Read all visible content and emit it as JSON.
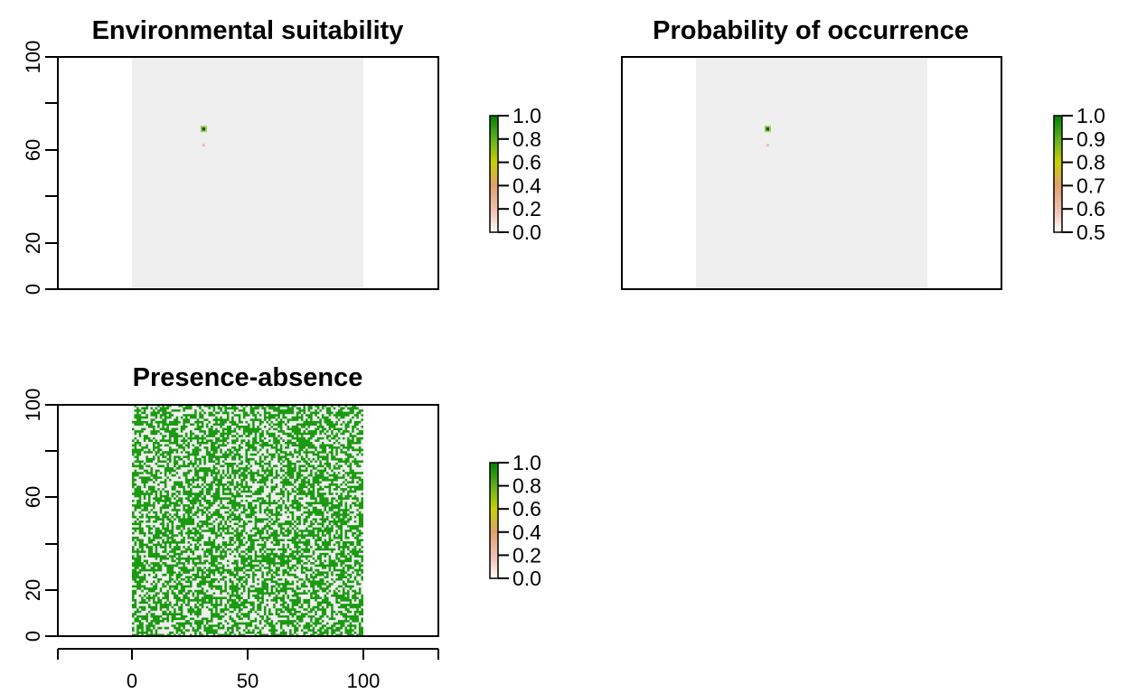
{
  "chart_data": [
    {
      "type": "heatmap",
      "title": "Environmental suitability",
      "xlim": [
        0,
        100
      ],
      "ylim": [
        0,
        100
      ],
      "yticks": [
        "0",
        "20",
        "60",
        "100"
      ],
      "legend": "right",
      "background_value_color": "#efefef",
      "hotspots": [
        {
          "x": 31,
          "y": 69,
          "value": 1.0
        },
        {
          "x": 31,
          "y": 62,
          "value": 0.1
        }
      ],
      "colorbar": {
        "ticks": [
          "0.0",
          "0.2",
          "0.4",
          "0.6",
          "0.8",
          "1.0"
        ],
        "colors": [
          "#ffffff",
          "#f2c8c0",
          "#e0a070",
          "#c8d000",
          "#60b020",
          "#008000"
        ]
      }
    },
    {
      "type": "heatmap",
      "title": "Probability of occurrence",
      "xlim": [
        0,
        100
      ],
      "ylim": [
        0,
        100
      ],
      "legend": "right",
      "background_value_color": "#efefef",
      "hotspots": [
        {
          "x": 31,
          "y": 69,
          "value": 1.0
        },
        {
          "x": 31,
          "y": 62,
          "value": 0.55
        }
      ],
      "colorbar": {
        "ticks": [
          "0.5",
          "0.6",
          "0.7",
          "0.8",
          "0.9",
          "1.0"
        ],
        "colors": [
          "#ffffff",
          "#f2c8c0",
          "#e0a070",
          "#c8d000",
          "#60b020",
          "#008000"
        ]
      }
    },
    {
      "type": "heatmap",
      "title": "Presence-absence",
      "xlim": [
        0,
        100
      ],
      "ylim": [
        0,
        100
      ],
      "xticks": [
        "0",
        "50",
        "100"
      ],
      "yticks": [
        "0",
        "20",
        "60",
        "100"
      ],
      "legend": "right",
      "binary_values": [
        0,
        1
      ],
      "value_colors": {
        "0": "#efefef",
        "1": "#1a9a10"
      },
      "grid_cells": 100,
      "presence_fraction": 0.55,
      "colorbar": {
        "ticks": [
          "0.0",
          "0.2",
          "0.4",
          "0.6",
          "0.8",
          "1.0"
        ],
        "colors": [
          "#ffffff",
          "#f2c8c0",
          "#e0a070",
          "#c8d000",
          "#60b020",
          "#008000"
        ]
      }
    }
  ]
}
